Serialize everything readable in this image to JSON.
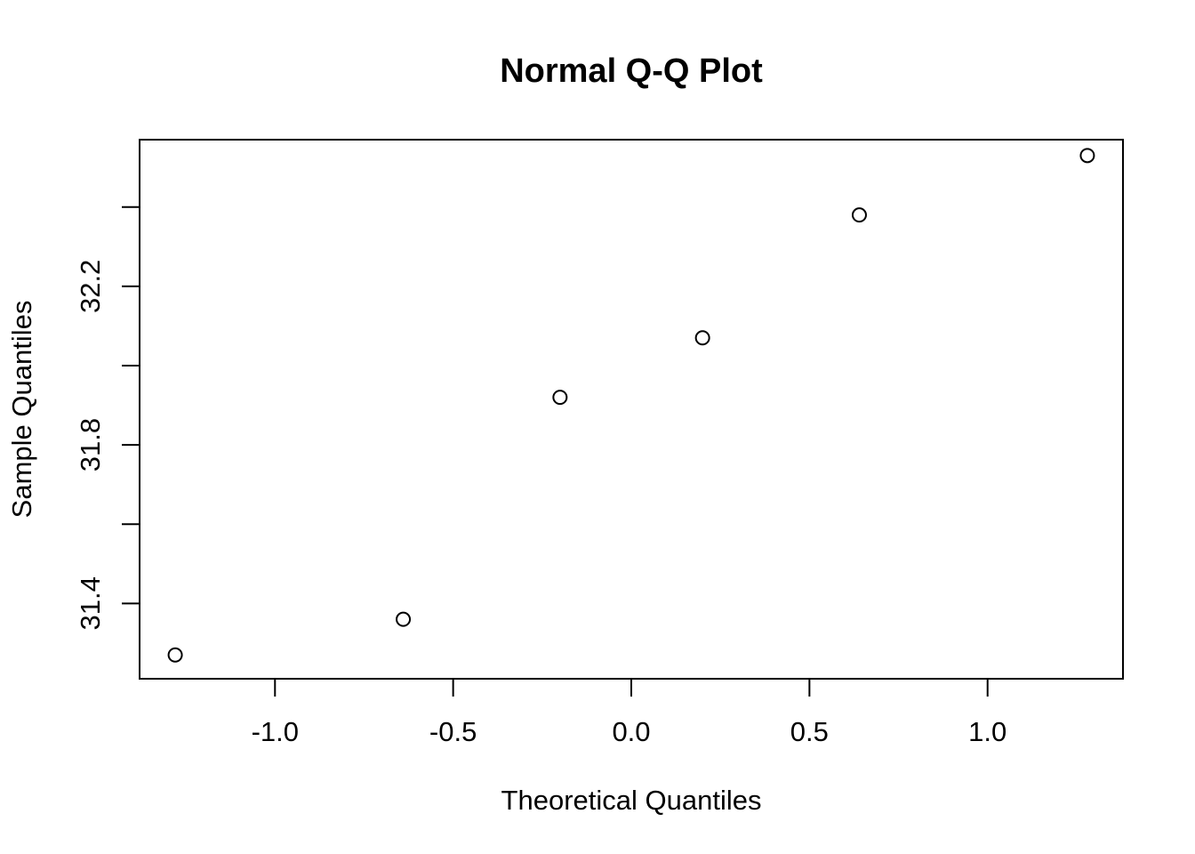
{
  "chart_data": {
    "type": "scatter",
    "title": "Normal Q-Q Plot",
    "xlabel": "Theoretical Quantiles",
    "ylabel": "Sample Quantiles",
    "xlim": [
      -1.38,
      1.38
    ],
    "ylim": [
      31.21,
      32.57
    ],
    "x_ticks": [
      -1.0,
      -0.5,
      0.0,
      0.5,
      1.0
    ],
    "x_tick_labels": [
      "-1.0",
      "-0.5",
      "0.0",
      "0.5",
      "1.0"
    ],
    "y_ticks": [
      31.4,
      31.6,
      31.8,
      32.0,
      32.2,
      32.4
    ],
    "y_tick_labels": [
      "31.4",
      "",
      "31.8",
      "",
      "32.2",
      ""
    ],
    "grid": false,
    "points": [
      {
        "x": -1.28,
        "y": 31.27
      },
      {
        "x": -0.64,
        "y": 31.36
      },
      {
        "x": -0.2,
        "y": 31.92
      },
      {
        "x": 0.2,
        "y": 32.07
      },
      {
        "x": 0.64,
        "y": 32.38
      },
      {
        "x": 1.28,
        "y": 32.53
      }
    ]
  }
}
